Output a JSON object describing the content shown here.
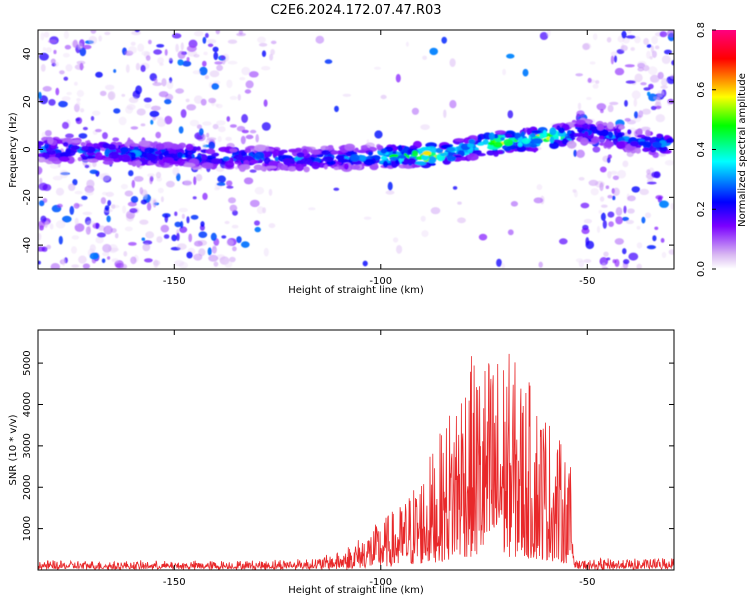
{
  "title": "C2E6.2024.172.07.47.R03",
  "colors": {
    "snr_line": "#e8282a",
    "colorbar": [
      "#ffffff",
      "#d9b8f2",
      "#7a00ff",
      "#0000ff",
      "#00ffff",
      "#00ff00",
      "#ffff00",
      "#ff0000",
      "#ff0080"
    ]
  },
  "chart_data": [
    {
      "type": "heatmap",
      "xlabel": "Height of straight line (km)",
      "ylabel": "Frequency (Hz)",
      "xlim": [
        -183,
        -29
      ],
      "ylim": [
        -50,
        50
      ],
      "xticks": [
        -150,
        -100,
        -50
      ],
      "yticks": [
        -40,
        -20,
        0,
        20,
        40
      ],
      "colorbar": {
        "label": "Normalized spectral amplitude",
        "range": [
          0.0,
          0.8
        ],
        "ticks": [
          "0.0",
          "0.2",
          "0.4",
          "0.6",
          "0.8"
        ]
      },
      "signal_trace": {
        "x": [
          -183,
          -140,
          -120,
          -100,
          -85,
          -75,
          -65,
          -54,
          -53,
          -45,
          -35,
          -29
        ],
        "y": [
          0,
          -3,
          -4,
          -3,
          -2,
          2,
          4,
          6,
          8,
          6,
          3,
          2
        ]
      }
    },
    {
      "type": "line",
      "xlabel": "Height of straight line (km)",
      "ylabel": "SNR (10 * v/v)",
      "xlim": [
        -183,
        -29
      ],
      "ylim": [
        0,
        5800
      ],
      "xticks": [
        -150,
        -100,
        -50
      ],
      "yticks": [
        1000,
        2000,
        3000,
        4000,
        5000
      ],
      "envelope": {
        "x": [
          -183,
          -150,
          -130,
          -115,
          -110,
          -105,
          -100,
          -95,
          -90,
          -85,
          -80,
          -75,
          -70,
          -65,
          -60,
          -56,
          -54,
          -53,
          -45,
          -35,
          -29
        ],
        "y": [
          200,
          180,
          200,
          280,
          450,
          800,
          1200,
          1600,
          2400,
          3400,
          5100,
          5200,
          5400,
          4700,
          3900,
          3000,
          2500,
          200,
          250,
          250,
          300
        ]
      }
    }
  ]
}
